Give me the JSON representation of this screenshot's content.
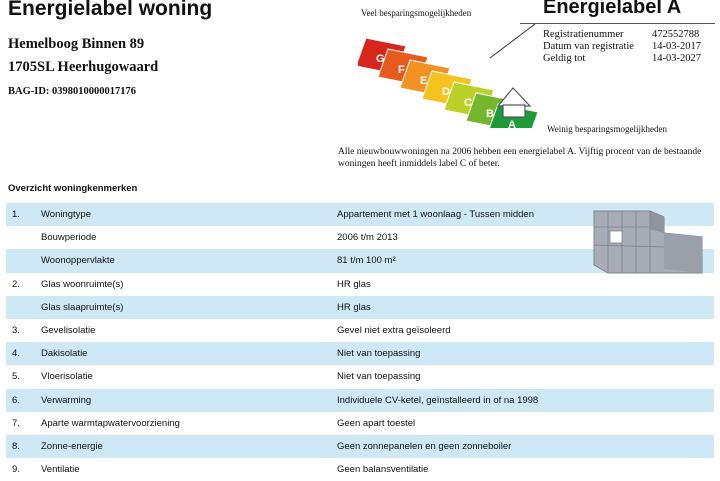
{
  "header": {
    "title": "Energielabel woning",
    "address_line1": "Hemelboog Binnen 89",
    "address_line2": "1705SL Heerhugowaard",
    "bag_id": "BAG-ID: 0398010000017176"
  },
  "label_graphic": {
    "most_savings": "Veel besparingsmogelijkheden",
    "least_savings": "Weinig besparingsmogelijkheden",
    "classes": [
      "G",
      "F",
      "E",
      "D",
      "C",
      "B",
      "A"
    ],
    "class_colors": [
      "#d7261c",
      "#e85a1e",
      "#f29222",
      "#f5c320",
      "#bcd02a",
      "#74b72f",
      "#1f9a3b"
    ],
    "current_class": "A"
  },
  "energy_label": {
    "title": "Energielabel A",
    "fields": [
      {
        "key": "Registratienummer",
        "value": "472552788"
      },
      {
        "key": "Datum van registratie",
        "value": "14-03-2017"
      },
      {
        "key": "Geldig tot",
        "value": "14-03-2027"
      }
    ]
  },
  "explanation": "Alle nieuwbouwwoningen na 2006 hebben een energielabel A. Vijftig procent van de bestaande woningen heeft inmiddels label C of beter.",
  "section_title": "Overzicht woningkenmerken",
  "characteristics": [
    {
      "num": "1.",
      "label": "Woningtype",
      "value": "Appartement met 1 woonlaag - Tussen midden",
      "shade": true
    },
    {
      "num": "",
      "label": "Bouwperiode",
      "value": "2006 t/m 2013",
      "shade": false
    },
    {
      "num": "",
      "label": "Woonoppervlakte",
      "value": "81 t/m 100 m²",
      "shade": true
    },
    {
      "num": "2.",
      "label": "Glas woonruimte(s)",
      "value": "HR glas",
      "shade": false
    },
    {
      "num": "",
      "label": "Glas slaapruimte(s)",
      "value": "HR glas",
      "shade": true
    },
    {
      "num": "3.",
      "label": "Gevelisolatie",
      "value": "Gevel niet extra geïsoleerd",
      "shade": false
    },
    {
      "num": "4.",
      "label": "Dakisolatie",
      "value": "Niet van toepassing",
      "shade": true
    },
    {
      "num": "5.",
      "label": "Vloerisolatie",
      "value": "Niet van toepassing",
      "shade": false
    },
    {
      "num": "6.",
      "label": "Verwarming",
      "value": "Individuele CV-ketel, geïnstalleerd in of na 1998",
      "shade": true
    },
    {
      "num": "7.",
      "label": "Aparte warmtapwatervoorziening",
      "value": "Geen apart toestel",
      "shade": false
    },
    {
      "num": "8.",
      "label": "Zonne-energie",
      "value": "Geen zonnepanelen en geen zonneboiler",
      "shade": true
    },
    {
      "num": "9.",
      "label": "Ventilatie",
      "value": "Geen balansventilatie",
      "shade": false
    }
  ],
  "colors": {
    "row_shade": "#cfe8f5",
    "building": "#9ea3ad"
  },
  "icons": {
    "label_graphic": "energy-label-scale-icon",
    "house": "apartment-building-icon"
  }
}
